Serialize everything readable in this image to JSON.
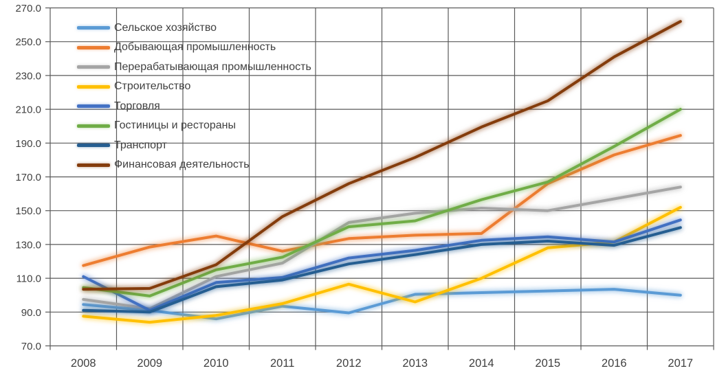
{
  "chart_data": {
    "type": "line",
    "title": "",
    "xlabel": "",
    "ylabel": "",
    "x": [
      2008,
      2009,
      2010,
      2011,
      2012,
      2013,
      2014,
      2015,
      2016,
      2017
    ],
    "ylim": [
      70,
      270
    ],
    "ytick_step": 20,
    "grid": true,
    "legend_position": "top-left-inside",
    "line_style": "glow",
    "series": [
      {
        "name": "Сельское хозяйство",
        "color": "#5B9BD5",
        "values": [
          94.5,
          91,
          86,
          93.5,
          89.5,
          100.5,
          101.5,
          102.5,
          103.5,
          100
        ]
      },
      {
        "name": "Добывающая промышленность",
        "color": "#ED7D31",
        "values": [
          117.5,
          128.5,
          135,
          126,
          133.5,
          135.5,
          136.5,
          166,
          183,
          194.5
        ]
      },
      {
        "name": "Перерабатывающая промышленность",
        "color": "#A5A5A5",
        "values": [
          97.5,
          92,
          111,
          119,
          143,
          148.5,
          151.5,
          150,
          157,
          164
        ]
      },
      {
        "name": "Строительство",
        "color": "#FFC000",
        "values": [
          87.5,
          84,
          88,
          95,
          106.5,
          96,
          110,
          128,
          131.5,
          152
        ]
      },
      {
        "name": "Торговля",
        "color": "#4472C4",
        "values": [
          111,
          91,
          107.5,
          110.5,
          122,
          126.5,
          132.5,
          134.5,
          131.5,
          144.5
        ]
      },
      {
        "name": "Гостиницы и рестораны",
        "color": "#70AD47",
        "values": [
          104.5,
          99.5,
          115,
          122.5,
          140.5,
          144,
          156.5,
          167,
          188,
          210
        ]
      },
      {
        "name": "Транспорт",
        "color": "#255E91",
        "values": [
          91,
          90,
          105,
          109,
          118.5,
          124,
          130,
          132,
          129.5,
          140
        ]
      },
      {
        "name": "Финансовая деятельность",
        "color": "#843C0C",
        "values": [
          103.5,
          104,
          118,
          146.5,
          166,
          181.5,
          199.5,
          215,
          241,
          262
        ]
      }
    ]
  },
  "axes": {
    "y_tick_labels": [
      "270.0",
      "250.0",
      "230.0",
      "210.0",
      "190.0",
      "170.0",
      "150.0",
      "130.0",
      "110.0",
      "90.0",
      "70.0"
    ],
    "x_labels": [
      "2008",
      "2009",
      "2010",
      "2011",
      "2012",
      "2013",
      "2014",
      "2015",
      "2016",
      "2017"
    ],
    "grid_color": "#595959",
    "tick_label_color": "#404040"
  }
}
